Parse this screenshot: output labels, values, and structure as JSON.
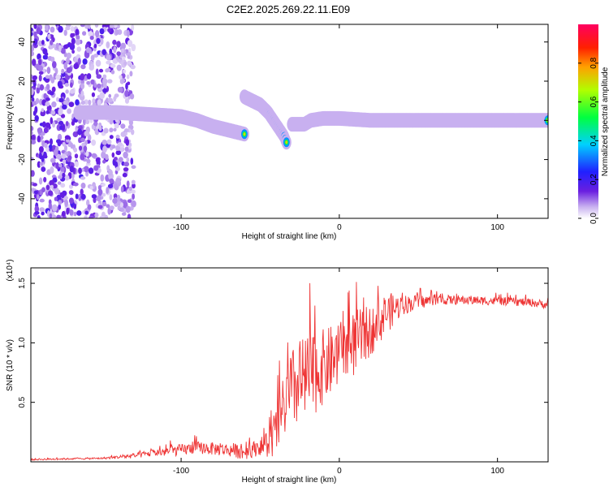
{
  "title": "C2E2.2025.269.22.11.E09",
  "chart_data": [
    {
      "type": "heatmap",
      "xlabel": "Height of straight line (km)",
      "ylabel": "Frequency (Hz)",
      "xlim": [
        -195,
        132
      ],
      "ylim": [
        -50,
        49
      ],
      "xticks": [
        -100,
        0,
        100
      ],
      "yticks": [
        -40,
        -20,
        0,
        20,
        40
      ],
      "colorbar": {
        "label": "Normalized spectral amplitude",
        "range": [
          0,
          1
        ],
        "ticks": [
          0.0,
          0.2,
          0.4,
          0.6,
          0.8
        ]
      },
      "ridge": {
        "segments": [
          {
            "x": [
              -165,
              -140,
              -120,
              -100,
              -90,
              -80,
              -70,
              -60
            ],
            "freq": [
              4,
              4,
              3,
              2,
              0,
              -3,
              -5,
              -7
            ]
          },
          {
            "x": [
              -60,
              -55,
              -50,
              -45,
              -40,
              -35,
              -33
            ],
            "freq": [
              12,
              10,
              8,
              4,
              -2,
              -8,
              -12
            ]
          },
          {
            "x": [
              -30,
              -22,
              -18,
              -10,
              0,
              20,
              60,
              100,
              132
            ],
            "freq": [
              -2,
              -2,
              0,
              1,
              1,
              0,
              0,
              0,
              0
            ]
          }
        ]
      }
    },
    {
      "type": "line",
      "xlabel": "Height of straight line (km)",
      "ylabel": "SNR (10 * v/v)",
      "yscale_label": "(x10⁴)",
      "xlim": [
        -195,
        132
      ],
      "ylim": [
        0.0,
        1.63
      ],
      "xticks": [
        -100,
        0,
        100
      ],
      "yticks": [
        0.5,
        1.0,
        1.5
      ],
      "yticklabels": [
        "0.5",
        "1.0",
        "1.5"
      ],
      "series": [
        {
          "name": "SNR",
          "color": "#ee3333",
          "envelope_x": [
            -195,
            -150,
            -130,
            -120,
            -100,
            -90,
            -70,
            -60,
            -45,
            -40,
            -35,
            -30,
            -25,
            -20,
            -15,
            -10,
            -5,
            0,
            5,
            10,
            15,
            20,
            30,
            40,
            60,
            80,
            100,
            120,
            132
          ],
          "envelope_y": [
            0.02,
            0.03,
            0.05,
            0.07,
            0.1,
            0.12,
            0.1,
            0.08,
            0.15,
            0.25,
            0.45,
            0.6,
            0.65,
            0.7,
            0.75,
            0.8,
            0.85,
            0.9,
            0.95,
            1.0,
            1.05,
            1.1,
            1.25,
            1.32,
            1.36,
            1.36,
            1.35,
            1.34,
            1.32
          ],
          "spread_x": [
            -195,
            -150,
            -130,
            -100,
            -70,
            -50,
            -40,
            -30,
            -20,
            -10,
            0,
            10,
            20,
            30,
            40,
            60,
            100,
            132
          ],
          "spread_y": [
            0.01,
            0.01,
            0.03,
            0.07,
            0.08,
            0.1,
            0.3,
            0.5,
            0.55,
            0.45,
            0.4,
            0.4,
            0.3,
            0.25,
            0.12,
            0.06,
            0.05,
            0.05
          ]
        }
      ]
    }
  ]
}
